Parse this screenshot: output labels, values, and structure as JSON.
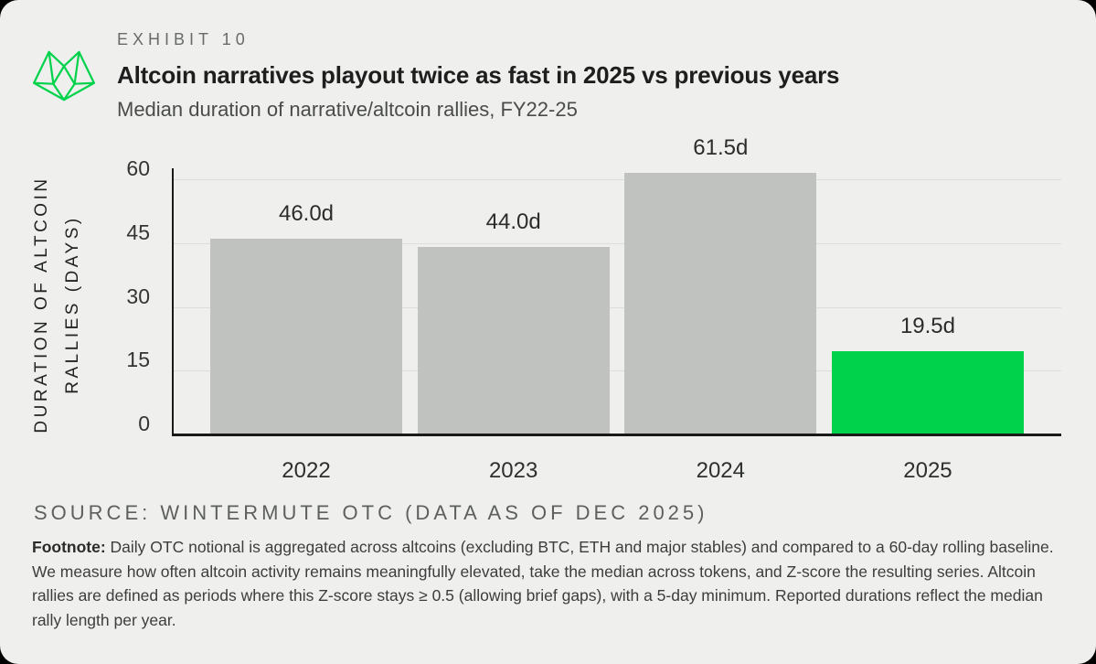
{
  "theme": {
    "accent_green": "#00d24c",
    "bar_gray": "#c0c2c0",
    "card_background": "#eff0ee",
    "outer_background": "#000000"
  },
  "header": {
    "exhibit": "EXHIBIT 10",
    "title": "Altcoin narratives playout twice as fast in 2025 vs previous years",
    "subtitle": "Median duration of narrative/altcoin rallies, FY22-25",
    "logo": "wintermute-logo"
  },
  "chart_data": {
    "type": "bar",
    "categories": [
      "2022",
      "2023",
      "2024",
      "2025"
    ],
    "values": [
      46.0,
      44.0,
      61.5,
      19.5
    ],
    "bar_labels": [
      "46.0d",
      "44.0d",
      "61.5d",
      "19.5d"
    ],
    "bar_colors": [
      "#c0c2c0",
      "#c0c2c0",
      "#c0c2c0",
      "#00d24c"
    ],
    "title": "Altcoin narratives playout twice as fast in 2025 vs previous years",
    "xlabel": "",
    "ylabel": "DURATION OF ALTCOIN RALLIES (DAYS)",
    "ylabel_lines": [
      "DURATION OF ALTCOIN",
      "RALLIES (DAYS)"
    ],
    "yticks": [
      0,
      15,
      30,
      45,
      60
    ],
    "ylim": [
      0,
      62
    ],
    "grid": "horizontal",
    "legend": "none"
  },
  "source": "SOURCE: WINTERMUTE OTC (DATA AS OF DEC 2025)",
  "footnote": {
    "label": "Footnote:",
    "text": " Daily OTC notional is aggregated across altcoins (excluding BTC, ETH and major stables) and compared to a 60-day rolling baseline. We measure how often altcoin activity remains meaningfully elevated, take the median across tokens, and Z-score the resulting series. Altcoin rallies are defined as periods where this Z-score stays ≥ 0.5 (allowing brief gaps), with a 5-day minimum. Reported durations reflect the median rally length per year."
  }
}
